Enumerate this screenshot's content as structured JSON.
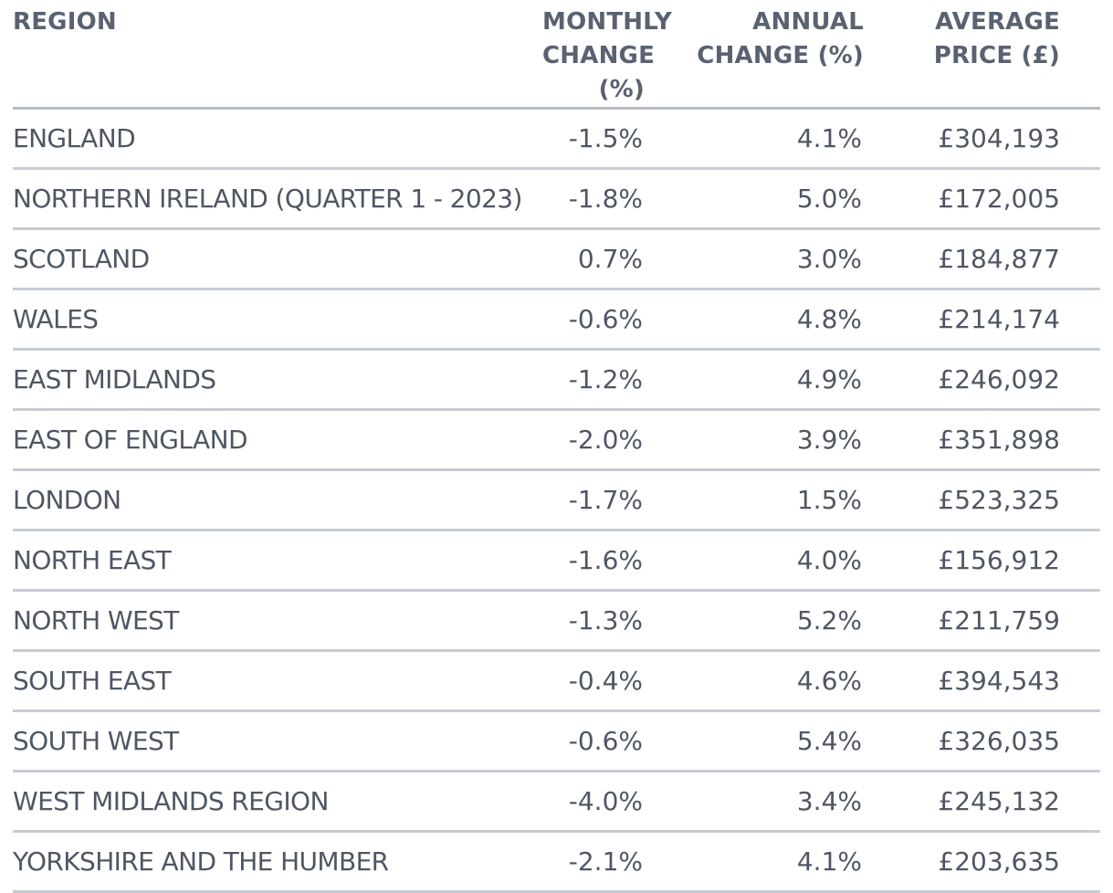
{
  "header": {
    "region": [
      "REGION"
    ],
    "monthly": [
      "MONTHLY",
      "CHANGE (%)"
    ],
    "annual": [
      "ANNUAL",
      "CHANGE (%)"
    ],
    "price": [
      "AVERAGE",
      "PRICE (£)"
    ]
  },
  "rows": [
    {
      "region": "ENGLAND",
      "monthly": "-1.5%",
      "annual": "4.1%",
      "price": "£304,193"
    },
    {
      "region": "NORTHERN IRELAND (QUARTER 1 - 2023)",
      "monthly": "-1.8%",
      "annual": "5.0%",
      "price": "£172,005"
    },
    {
      "region": "SCOTLAND",
      "monthly": "0.7%",
      "annual": "3.0%",
      "price": "£184,877"
    },
    {
      "region": "WALES",
      "monthly": "-0.6%",
      "annual": "4.8%",
      "price": "£214,174"
    },
    {
      "region": "EAST MIDLANDS",
      "monthly": "-1.2%",
      "annual": "4.9%",
      "price": "£246,092"
    },
    {
      "region": "EAST OF ENGLAND",
      "monthly": "-2.0%",
      "annual": "3.9%",
      "price": "£351,898"
    },
    {
      "region": "LONDON",
      "monthly": "-1.7%",
      "annual": "1.5%",
      "price": "£523,325"
    },
    {
      "region": "NORTH EAST",
      "monthly": "-1.6%",
      "annual": "4.0%",
      "price": "£156,912"
    },
    {
      "region": "NORTH WEST",
      "monthly": "-1.3%",
      "annual": "5.2%",
      "price": "£211,759"
    },
    {
      "region": "SOUTH EAST",
      "monthly": "-0.4%",
      "annual": "4.6%",
      "price": "£394,543"
    },
    {
      "region": "SOUTH WEST",
      "monthly": "-0.6%",
      "annual": "5.4%",
      "price": "£326,035"
    },
    {
      "region": "WEST MIDLANDS REGION",
      "monthly": "-4.0%",
      "annual": "3.4%",
      "price": "£245,132"
    },
    {
      "region": "YORKSHIRE AND THE HUMBER",
      "monthly": "-2.1%",
      "annual": "4.1%",
      "price": "£203,635"
    }
  ],
  "colors": {
    "header_text": "#5a6271",
    "body_text": "#4f5663",
    "rule": "#c8ccd2",
    "header_rule": "#b6bbc2"
  }
}
